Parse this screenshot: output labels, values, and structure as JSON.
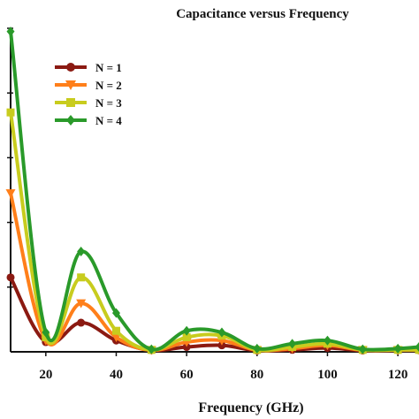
{
  "chart_data": {
    "type": "line",
    "title": "Capacitance versus Frequency",
    "xlabel": "Frequency (GHz)",
    "ylabel": "",
    "xlim": [
      10,
      126
    ],
    "ylim": [
      0,
      10
    ],
    "xticks": [
      20,
      40,
      60,
      80,
      100,
      120
    ],
    "grid": false,
    "legend_position": "top-left",
    "x": [
      10,
      20,
      30,
      40,
      50,
      60,
      70,
      80,
      90,
      100,
      110,
      120,
      126
    ],
    "series": [
      {
        "name": "N = 1",
        "color": "#8b1a12",
        "marker": "circle",
        "values": [
          2.3,
          0.3,
          0.9,
          0.35,
          0.05,
          0.15,
          0.2,
          0.04,
          0.06,
          0.12,
          0.04,
          0.05,
          0.05
        ]
      },
      {
        "name": "N = 2",
        "color": "#ff7f1a",
        "marker": "triangle-down",
        "values": [
          4.9,
          0.35,
          1.5,
          0.45,
          0.05,
          0.3,
          0.35,
          0.05,
          0.1,
          0.2,
          0.05,
          0.05,
          0.05
        ]
      },
      {
        "name": "N = 3",
        "color": "#c8cc1e",
        "marker": "square",
        "values": [
          7.4,
          0.45,
          2.3,
          0.65,
          0.06,
          0.45,
          0.5,
          0.06,
          0.15,
          0.25,
          0.06,
          0.06,
          0.06
        ]
      },
      {
        "name": "N = 4",
        "color": "#2a9a2a",
        "marker": "diamond",
        "values": [
          9.9,
          0.6,
          3.1,
          1.2,
          0.08,
          0.65,
          0.6,
          0.1,
          0.25,
          0.35,
          0.08,
          0.1,
          0.15
        ]
      }
    ]
  }
}
